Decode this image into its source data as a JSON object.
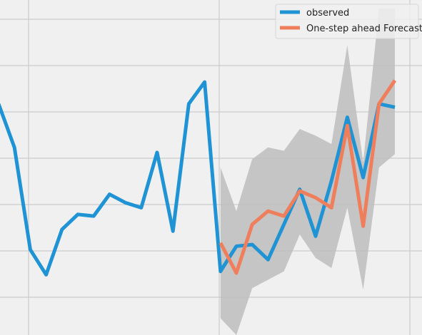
{
  "chart_data": {
    "type": "line",
    "grid": true,
    "legend_position": "top-right",
    "x": [
      0,
      1,
      2,
      3,
      4,
      5,
      6,
      7,
      8,
      9,
      10,
      11,
      12,
      13,
      14,
      15,
      16,
      17,
      18,
      19,
      20,
      21,
      22,
      23,
      24,
      25
    ],
    "xlim": [
      0,
      25.6
    ],
    "ylim": [
      0,
      1
    ],
    "series": [
      {
        "name": "observed",
        "color": "#1f93d4",
        "values": [
          0.69,
          0.56,
          0.255,
          0.18,
          0.315,
          0.36,
          0.355,
          0.42,
          0.395,
          0.38,
          0.545,
          0.31,
          0.69,
          0.755,
          0.19,
          0.265,
          0.27,
          0.225,
          0.33,
          0.435,
          0.295,
          0.46,
          0.65,
          0.47,
          0.69,
          0.68
        ]
      },
      {
        "name": "One-step ahead Forecast",
        "color": "#ef7f5c",
        "x": [
          14,
          15,
          16,
          17,
          18,
          19,
          20,
          21,
          22,
          23,
          24,
          25
        ],
        "values": [
          0.275,
          0.185,
          0.33,
          0.37,
          0.355,
          0.43,
          0.41,
          0.38,
          0.625,
          0.325,
          0.69,
          0.76
        ]
      }
    ],
    "confidence_interval": {
      "color": "#c0c0c0",
      "x": [
        14,
        15,
        16,
        17,
        18,
        19,
        20,
        21,
        22,
        23,
        24,
        25
      ],
      "lower": [
        0.05,
        0.0,
        0.14,
        0.165,
        0.19,
        0.3,
        0.23,
        0.2,
        0.38,
        0.135,
        0.5,
        0.54
      ],
      "upper": [
        0.5,
        0.37,
        0.525,
        0.56,
        0.55,
        0.615,
        0.595,
        0.57,
        0.865,
        0.515,
        0.975,
        0.975
      ]
    }
  }
}
